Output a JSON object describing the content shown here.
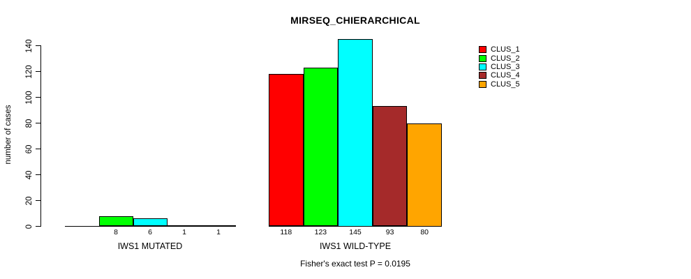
{
  "chart_data": {
    "type": "bar",
    "title": "MIRSEQ_CHIERARCHICAL",
    "ylabel": "number of cases",
    "xlabel": "",
    "ylim": [
      0,
      145
    ],
    "yticks": [
      0,
      20,
      40,
      60,
      80,
      100,
      120,
      140
    ],
    "grid": false,
    "legend_position": "top-right",
    "groups": [
      "IWS1 MUTATED",
      "IWS1 WILD-TYPE"
    ],
    "series": [
      {
        "name": "CLUS_1",
        "color": "#ff0000",
        "values": [
          0,
          118
        ],
        "value_labels": [
          "",
          "118"
        ]
      },
      {
        "name": "CLUS_2",
        "color": "#00ff00",
        "values": [
          8,
          123
        ],
        "value_labels": [
          "8",
          "123"
        ]
      },
      {
        "name": "CLUS_3",
        "color": "#00ffff",
        "values": [
          6,
          145
        ],
        "value_labels": [
          "6",
          "145"
        ]
      },
      {
        "name": "CLUS_4",
        "color": "#a52a2a",
        "values": [
          1,
          93
        ],
        "value_labels": [
          "1",
          "93"
        ]
      },
      {
        "name": "CLUS_5",
        "color": "#ffa500",
        "values": [
          1,
          80
        ],
        "value_labels": [
          "1",
          "80"
        ]
      }
    ],
    "annotation": "Fisher's exact test P = 0.0195"
  }
}
